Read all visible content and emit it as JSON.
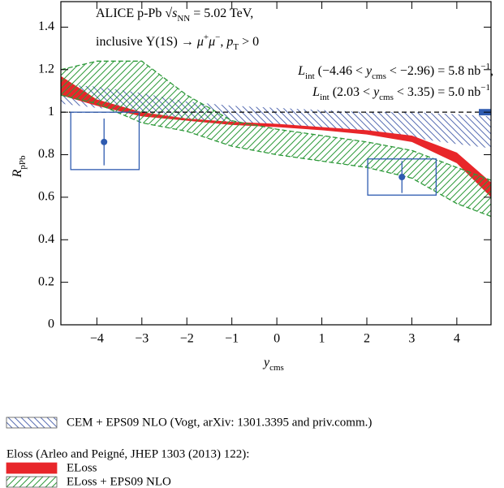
{
  "chart_data": {
    "type": "band-points",
    "annotations": [
      [
        {
          "t": "ALICE p-Pb √"
        },
        {
          "t": "s",
          "s": "i"
        },
        {
          "t": "NN",
          "s": "sub"
        },
        {
          "t": " = 5.02 TeV,"
        }
      ],
      [
        {
          "t": "inclusive Υ(1S) → "
        },
        {
          "t": "μ",
          "s": "i"
        },
        {
          "t": "+",
          "s": "sup"
        },
        {
          "t": "μ",
          "s": "i"
        },
        {
          "t": "−",
          "s": "sup"
        },
        {
          "t": ", "
        },
        {
          "t": "p",
          "s": "i"
        },
        {
          "t": "T",
          "s": "sub"
        },
        {
          "t": " > 0"
        }
      ],
      [
        {
          "t": "L",
          "s": "i"
        },
        {
          "t": "int",
          "s": "sub"
        },
        {
          "t": " (−4.46 < "
        },
        {
          "t": "y",
          "s": "i"
        },
        {
          "t": "cms",
          "s": "sub"
        },
        {
          "t": " < −2.96) = 5.8 nb"
        },
        {
          "t": "−1",
          "s": "sup"
        },
        {
          "t": ","
        }
      ],
      [
        {
          "t": "L",
          "s": "i"
        },
        {
          "t": "int",
          "s": "sub"
        },
        {
          "t": " (2.03 < "
        },
        {
          "t": "y",
          "s": "i"
        },
        {
          "t": "cms",
          "s": "sub"
        },
        {
          "t": " < 3.35) = 5.0 nb"
        },
        {
          "t": "−1",
          "s": "sup"
        }
      ]
    ],
    "x_label": [
      {
        "t": "y",
        "s": "i"
      },
      {
        "t": "cms",
        "s": "sub"
      }
    ],
    "y_label": [
      {
        "t": "R",
        "s": "i"
      },
      {
        "t": "pPb",
        "s": "sub"
      }
    ],
    "xlim": [
      -4.8,
      4.76
    ],
    "ylim": [
      0,
      1.52
    ],
    "xticks": [
      {
        "value": -4,
        "label": "−4"
      },
      {
        "value": -3,
        "label": "−3"
      },
      {
        "value": -2,
        "label": "−2"
      },
      {
        "value": -1,
        "label": "−1"
      },
      0,
      1,
      2,
      3,
      4
    ],
    "yticks": [
      0,
      0.2,
      0.4,
      0.6,
      0.8,
      1,
      1.2,
      1.4
    ],
    "reference_line": 1,
    "global_uncertainty": 0.015,
    "global_color": "#2e5bb0",
    "bands": [
      {
        "name": "CEM + EPS09 NLO (Vogt, arXiv: 1301.3395 and priv.comm.)",
        "color": "#5a6fb3",
        "style": "hatch-back",
        "x": [
          -4.8,
          -4,
          -3,
          -2,
          -1,
          0,
          1,
          2,
          3,
          4,
          4.76
        ],
        "lower": [
          1.04,
          1.02,
          1.0,
          0.97,
          0.95,
          0.94,
          0.92,
          0.9,
          0.88,
          0.85,
          0.83
        ],
        "upper": [
          1.13,
          1.12,
          1.09,
          1.05,
          1.03,
          1.02,
          1.01,
          1.0,
          1.0,
          0.99,
          0.98
        ]
      },
      {
        "name": "ELoss",
        "color": "#e8262a",
        "style": "solid",
        "x": [
          -4.8,
          -4,
          -3,
          -2,
          -1,
          0,
          1,
          2,
          3,
          4,
          4.76
        ],
        "lower": [
          1.08,
          1.03,
          0.98,
          0.96,
          0.94,
          0.93,
          0.915,
          0.895,
          0.86,
          0.76,
          0.6
        ],
        "upper": [
          1.17,
          1.06,
          1.0,
          0.97,
          0.955,
          0.945,
          0.93,
          0.915,
          0.89,
          0.81,
          0.67
        ]
      },
      {
        "name": "ELoss + EPS09 NLO",
        "color": "#2e9a3a",
        "style": "hatch",
        "x": [
          -4.8,
          -4,
          -3,
          -2,
          -1,
          0,
          1,
          2,
          3,
          4,
          4.76
        ],
        "lower": [
          1.08,
          1.04,
          0.95,
          0.91,
          0.84,
          0.8,
          0.77,
          0.74,
          0.69,
          0.57,
          0.51
        ],
        "upper": [
          1.2,
          1.24,
          1.24,
          1.08,
          0.96,
          0.92,
          0.89,
          0.86,
          0.82,
          0.74,
          0.68
        ]
      }
    ],
    "points": {
      "color": "#2e5bb0",
      "x": [
        -3.84,
        2.78
      ],
      "values": [
        0.86,
        0.695
      ],
      "stat_err": [
        0.11,
        0.075
      ],
      "sys_box_x": [
        [
          -4.58,
          -3.06
        ],
        [
          2.02,
          3.54
        ]
      ],
      "sys_box_y": [
        [
          0.73,
          1.0
        ],
        [
          0.61,
          0.78
        ]
      ]
    },
    "legend_group_title": "Eloss (Arleo and Peigné, JHEP 1303 (2013) 122):"
  }
}
